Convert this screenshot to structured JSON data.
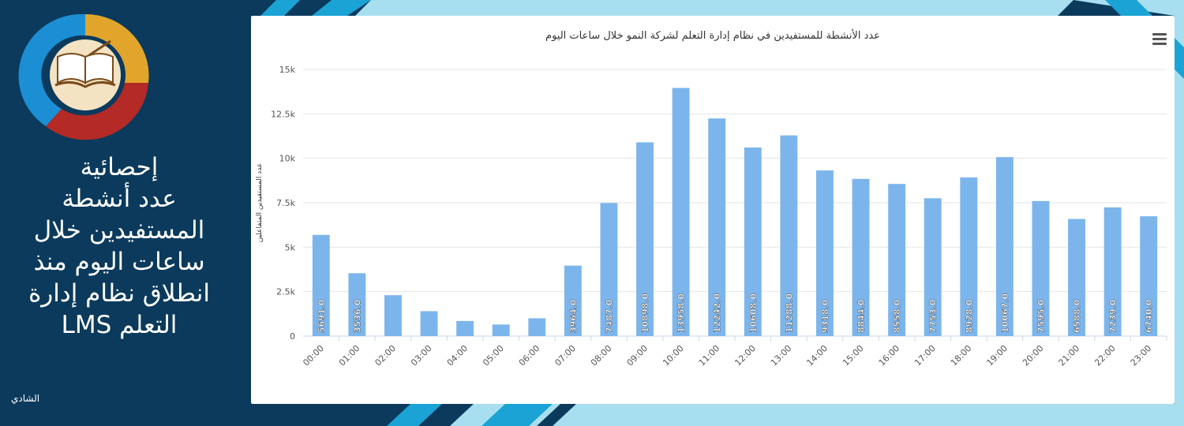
{
  "sidebar": {
    "headline_lines": [
      "إحصائية",
      "عدد أنشطة",
      "المستفيدين خلال",
      "ساعات اليوم  منذ",
      "انطلاق نظام إدارة",
      "التعلم LMS"
    ],
    "author": "الشادي",
    "logo_icon": "open-book-icon"
  },
  "colors": {
    "background": "#0b3a5c",
    "bar": "#7cb5ec",
    "accent_light": "#a8dff0",
    "accent_mid": "#1aa3d4",
    "logo_gold": "#e2a52c",
    "logo_red": "#b42a26",
    "logo_blue": "#1c8ed3"
  },
  "chart_data": {
    "type": "bar",
    "title": "عدد الأنشطة للمستفيدين في نظام إدارة التعلم لشركة النمو خلال ساعات اليوم",
    "ylabel": "عدد المستفيدين المتفاعلين",
    "xlabel": "",
    "ylim": [
      0,
      15000
    ],
    "yticks": [
      0,
      2500,
      5000,
      7500,
      10000,
      12500,
      15000
    ],
    "ytick_labels": [
      "0",
      "2.5k",
      "5k",
      "7.5k",
      "10k",
      "12.5k",
      "15k"
    ],
    "grid": true,
    "categories": [
      "00:00",
      "01:00",
      "02:00",
      "03:00",
      "04:00",
      "05:00",
      "06:00",
      "07:00",
      "08:00",
      "09:00",
      "10:00",
      "11:00",
      "12:00",
      "13:00",
      "14:00",
      "15:00",
      "16:00",
      "17:00",
      "18:00",
      "19:00",
      "20:00",
      "21:00",
      "22:00",
      "23:00"
    ],
    "values": [
      5691,
      3536,
      2300,
      1400,
      850,
      650,
      1000,
      3964,
      7487,
      10898,
      13958,
      12242,
      10608,
      11288,
      9318,
      8844,
      8558,
      7753,
      8928,
      10067,
      7595,
      6588,
      7239,
      6740
    ],
    "data_labels": [
      "5691.0",
      "3536.0",
      "",
      "",
      "",
      "",
      "",
      "3964.0",
      "7487.0",
      "10898.0",
      "13958.0",
      "12242.0",
      "10608.0",
      "11288.0",
      "9318.0",
      "8844.0",
      "8558.0",
      "7753.0",
      "8928.0",
      "10067.0",
      "7595.0",
      "6588.0",
      "7239.0",
      "6740.0"
    ],
    "menu_icon": "hamburger-menu-icon"
  }
}
